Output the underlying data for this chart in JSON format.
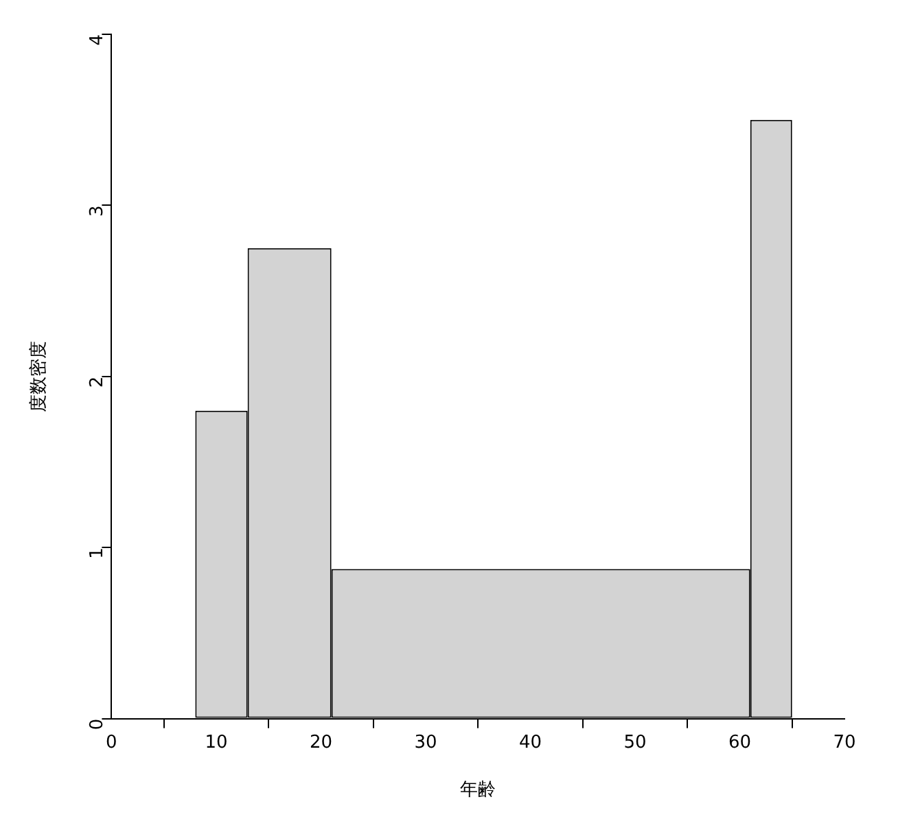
{
  "chart_data": {
    "type": "histogram",
    "xlabel": "年齢",
    "ylabel": "度数密度",
    "bins": [
      8,
      13,
      21,
      61,
      65
    ],
    "values": [
      1.8,
      2.75,
      0.875,
      3.5
    ],
    "color": "#d3d3d3",
    "xlim": [
      0,
      70
    ],
    "xticks": [
      0,
      10,
      20,
      30,
      40,
      50,
      60,
      70
    ],
    "ylim": [
      0,
      4
    ],
    "yticks": [
      0,
      1,
      2,
      3,
      4
    ],
    "grid": false,
    "legend": false
  }
}
